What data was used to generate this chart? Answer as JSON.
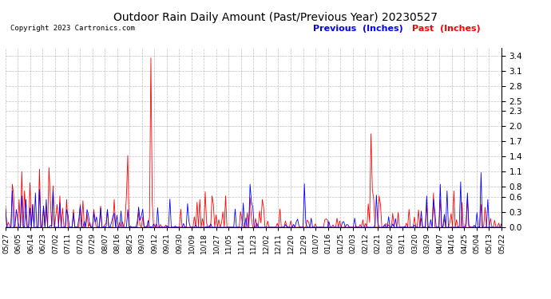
{
  "title": "Outdoor Rain Daily Amount (Past/Previous Year) 20230527",
  "copyright": "Copyright 2023 Cartronics.com",
  "legend_previous": "Previous  (Inches)",
  "legend_past": "Past  (Inches)",
  "color_previous": "blue",
  "color_past": "red",
  "color_black": "black",
  "color_bg": "white",
  "color_grid": "#b0b0b0",
  "yticks": [
    0.0,
    0.3,
    0.6,
    0.8,
    1.1,
    1.4,
    1.7,
    2.0,
    2.3,
    2.5,
    2.8,
    3.1,
    3.4
  ],
  "ylim": [
    0.0,
    3.55
  ],
  "n_points": 366,
  "figsize": [
    6.9,
    3.75
  ],
  "dpi": 100,
  "xtick_labels": [
    "05/27",
    "06/05",
    "06/14",
    "06/23",
    "07/02",
    "07/11",
    "07/20",
    "07/29",
    "08/07",
    "08/16",
    "08/25",
    "09/03",
    "09/12",
    "09/21",
    "09/30",
    "10/09",
    "10/18",
    "10/27",
    "11/05",
    "11/14",
    "11/23",
    "12/02",
    "12/11",
    "12/20",
    "12/29",
    "01/07",
    "01/16",
    "01/25",
    "02/03",
    "02/12",
    "02/21",
    "03/02",
    "03/11",
    "03/20",
    "03/29",
    "04/07",
    "04/16",
    "04/25",
    "05/04",
    "05/13",
    "05/22"
  ]
}
